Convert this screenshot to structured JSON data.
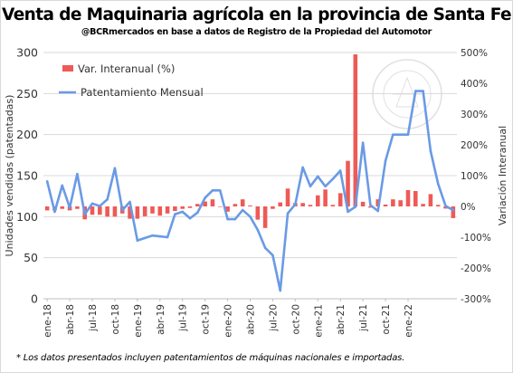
{
  "chart_data": {
    "type": "bar+line",
    "title": "Venta de Maquinaria agrícola en la provincia de Santa Fe",
    "subtitle": "@BCRmercados en base a datos de Registro de la Propiedad del Automotor",
    "note": "* Los datos presentados incluyen patentamientos de máquinas nacionales e importadas.",
    "ylabel_left": "Unidades vendidas (patentadas)",
    "ylabel_right": "Variación Interanual",
    "ylim_left": [
      0,
      300
    ],
    "yticks_left": [
      "0",
      "50",
      "100",
      "150",
      "200",
      "250",
      "300"
    ],
    "ylim_right": [
      -300,
      500
    ],
    "yticks_right": [
      "-300%",
      "-200%",
      "-100%",
      "0%",
      "100%",
      "200%",
      "300%",
      "400%",
      "500%"
    ],
    "x_tick_labels": [
      "ene-18",
      "abr-18",
      "jul-18",
      "oct-18",
      "ene-19",
      "abr-19",
      "jul-19",
      "oct-19",
      "ene-20",
      "abr-20",
      "jul-20",
      "oct-20",
      "ene-21",
      "abr-21",
      "jul-21",
      "oct-21",
      "ene-22"
    ],
    "legend_position": "top-left",
    "grid": "horizontal",
    "series": [
      {
        "name": "Var. Interanual (%)",
        "type": "bar",
        "axis": "right",
        "color": "#ee5a55",
        "values": [
          -13,
          -13,
          -8,
          -13,
          -8,
          -42,
          -27,
          -27,
          -33,
          -33,
          -23,
          -40,
          -40,
          -32,
          -23,
          -30,
          -23,
          -15,
          -8,
          -5,
          8,
          16,
          23,
          0,
          -17,
          8,
          23,
          3,
          -43,
          -70,
          -8,
          13,
          58,
          11,
          11,
          5,
          36,
          55,
          5,
          43,
          148,
          494,
          15,
          -4,
          23,
          6,
          23,
          20,
          53,
          50,
          8,
          40,
          5,
          -7,
          -38
        ]
      },
      {
        "name": "Patentamiento Mensual",
        "type": "line",
        "axis": "left",
        "color": "#6a9ae6",
        "values": [
          143,
          106,
          138,
          111,
          152,
          103,
          116,
          113,
          121,
          159,
          108,
          118,
          71,
          74,
          77,
          76,
          75,
          103,
          106,
          98,
          105,
          123,
          132,
          132,
          97,
          97,
          108,
          100,
          84,
          62,
          53,
          10,
          104,
          115,
          160,
          137,
          149,
          137,
          146,
          156,
          106,
          112,
          190,
          114,
          107,
          168,
          200,
          200,
          200,
          253,
          253,
          180,
          140,
          113,
          108
        ]
      }
    ]
  }
}
